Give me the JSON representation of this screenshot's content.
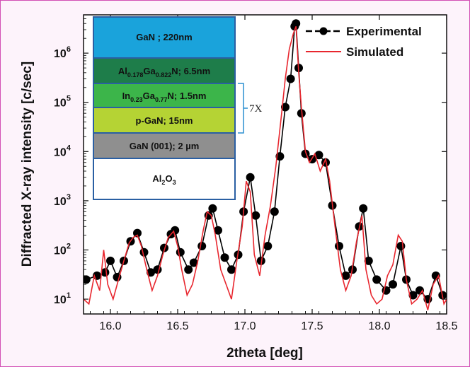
{
  "chart_data": {
    "type": "line",
    "xlabel": "2theta [deg]",
    "ylabel": "Diffracted X-ray intensity [c/sec]",
    "xlim": [
      15.8,
      18.5
    ],
    "ylim": [
      5,
      6000000
    ],
    "yscale": "log",
    "xticks": [
      "16.0",
      "16.5",
      "17.0",
      "17.5",
      "18.0",
      "18.5"
    ],
    "yticks": [
      {
        "base": "10",
        "exp": "1"
      },
      {
        "base": "10",
        "exp": "2"
      },
      {
        "base": "10",
        "exp": "3"
      },
      {
        "base": "10",
        "exp": "4"
      },
      {
        "base": "10",
        "exp": "5"
      },
      {
        "base": "10",
        "exp": "6"
      }
    ],
    "legend_position": "top-right",
    "series": [
      {
        "name": "Experimental",
        "color": "#000000",
        "marker": "circle",
        "x": [
          15.82,
          15.9,
          15.96,
          16.0,
          16.05,
          16.1,
          16.15,
          16.2,
          16.25,
          16.3,
          16.35,
          16.4,
          16.45,
          16.48,
          16.52,
          16.58,
          16.62,
          16.68,
          16.73,
          16.76,
          16.8,
          16.85,
          16.9,
          16.95,
          16.99,
          17.04,
          17.08,
          17.12,
          17.17,
          17.22,
          17.26,
          17.3,
          17.34,
          17.37,
          17.38,
          17.4,
          17.42,
          17.45,
          17.5,
          17.55,
          17.6,
          17.65,
          17.7,
          17.75,
          17.8,
          17.85,
          17.88,
          17.92,
          17.98,
          18.05,
          18.1,
          18.16,
          18.2,
          18.25,
          18.3,
          18.36,
          18.42,
          18.47
        ],
        "y": [
          25,
          30,
          35,
          60,
          28,
          60,
          150,
          220,
          90,
          35,
          40,
          110,
          210,
          250,
          90,
          40,
          55,
          120,
          500,
          700,
          250,
          70,
          40,
          80,
          600,
          3000,
          500,
          60,
          120,
          600,
          8000,
          80000,
          300000,
          3500000,
          4000000,
          500000,
          60000,
          9000,
          7000,
          8500,
          6000,
          800,
          120,
          30,
          40,
          300,
          700,
          60,
          25,
          15,
          20,
          120,
          25,
          12,
          15,
          10,
          30,
          12
        ]
      },
      {
        "name": "Simulated",
        "color": "#e8262e",
        "x": [
          15.8,
          15.84,
          15.88,
          15.92,
          15.95,
          15.98,
          16.02,
          16.06,
          16.1,
          16.14,
          16.17,
          16.2,
          16.23,
          16.27,
          16.31,
          16.35,
          16.39,
          16.43,
          16.47,
          16.5,
          16.53,
          16.57,
          16.61,
          16.65,
          16.69,
          16.72,
          16.75,
          16.78,
          16.82,
          16.86,
          16.9,
          16.94,
          16.98,
          17.01,
          17.04,
          17.07,
          17.11,
          17.15,
          17.19,
          17.23,
          17.27,
          17.3,
          17.33,
          17.36,
          17.38,
          17.4,
          17.42,
          17.45,
          17.48,
          17.52,
          17.56,
          17.6,
          17.63,
          17.67,
          17.71,
          17.75,
          17.79,
          17.83,
          17.87,
          17.9,
          17.94,
          17.98,
          18.02,
          18.06,
          18.1,
          18.14,
          18.17,
          18.2,
          18.24,
          18.28,
          18.32,
          18.36,
          18.4,
          18.44,
          18.48,
          18.5
        ],
        "y": [
          10,
          8,
          30,
          15,
          100,
          20,
          10,
          25,
          60,
          140,
          180,
          200,
          120,
          40,
          15,
          30,
          80,
          180,
          240,
          120,
          40,
          12,
          20,
          60,
          250,
          600,
          500,
          200,
          40,
          20,
          10,
          60,
          300,
          2500,
          1500,
          80,
          30,
          200,
          800,
          5000,
          50000,
          300000,
          1200000,
          2500000,
          3500000,
          400000,
          80000,
          10000,
          6000,
          9000,
          4000,
          7000,
          2500,
          300,
          40,
          15,
          30,
          150,
          500,
          40,
          12,
          8,
          10,
          30,
          50,
          200,
          150,
          25,
          8,
          10,
          15,
          6,
          20,
          30,
          8,
          10
        ]
      }
    ]
  },
  "legend": {
    "experimental_label": "Experimental",
    "simulated_label": "Simulated"
  },
  "inset": {
    "bracket_label": "7X",
    "layers": [
      {
        "text": "GaN ; 220nm",
        "color": "#1aa3db"
      },
      {
        "color": "#1e7d4a",
        "el1": "Al",
        "sub1": "0.178",
        "el2": "Ga",
        "sub2": "0.822",
        "tail": "N;  6.5nm"
      },
      {
        "color": "#3cb54a",
        "el1": "In",
        "sub1": "0.23",
        "el2": "Ga",
        "sub2": "0.77",
        "tail": "N; 1.5nm"
      },
      {
        "text": "p-GaN; 15nm",
        "color": "#b5d334"
      },
      {
        "text": "GaN (001); 2 µm",
        "color": "#8f8f8f"
      },
      {
        "color": "#ffffff",
        "el1": "Al",
        "sub1": "2",
        "el2": "O",
        "sub2": "3",
        "tail": ""
      }
    ]
  }
}
